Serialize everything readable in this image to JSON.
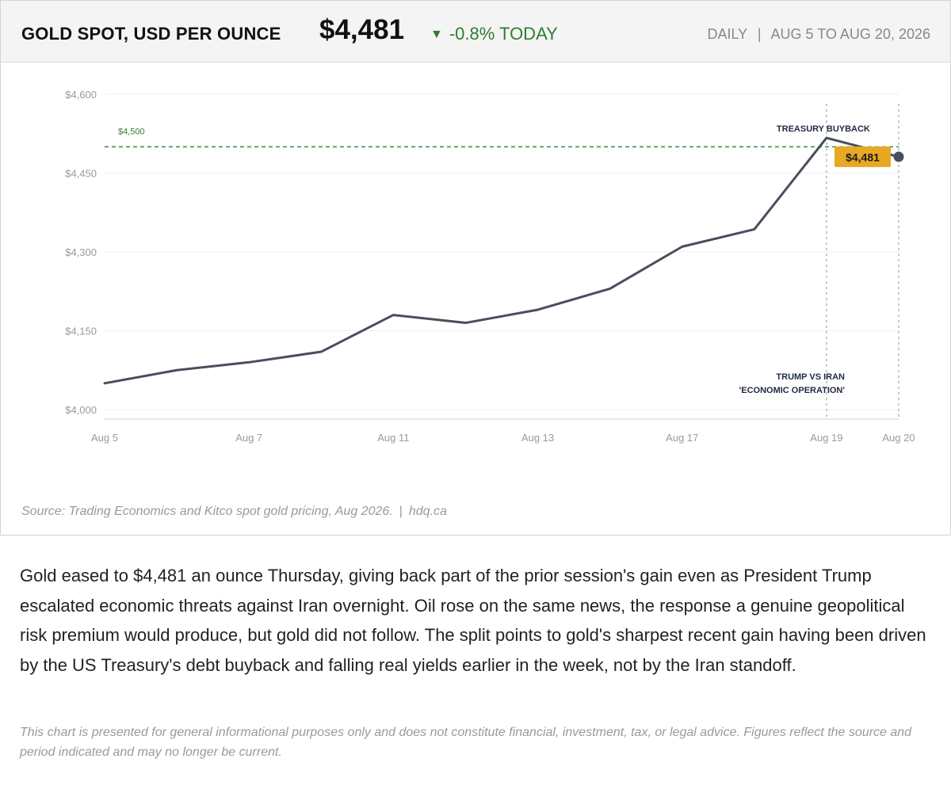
{
  "header": {
    "title": "GOLD SPOT, USD PER OUNCE",
    "price": "$4,481",
    "change_arrow": "▼",
    "change_text": "-0.8% TODAY",
    "change_color": "#2f7d32",
    "frequency": "DAILY",
    "separator": "|",
    "date_range": "AUG 5 TO AUG 20, 2026"
  },
  "chart_data": {
    "type": "line",
    "title": "GOLD SPOT, USD PER OUNCE",
    "x": [
      "Aug 5",
      "Aug 6",
      "Aug 7",
      "Aug 10",
      "Aug 11",
      "Aug 12",
      "Aug 13",
      "Aug 14",
      "Aug 17",
      "Aug 18",
      "Aug 19",
      "Aug 20"
    ],
    "x_tick_labels": [
      "Aug 5",
      "Aug 7",
      "Aug 11",
      "Aug 13",
      "Aug 17",
      "Aug 19",
      "Aug 20"
    ],
    "series": [
      {
        "values": [
          4050,
          4075,
          4090,
          4110,
          4180,
          4165,
          4190,
          4230,
          4310,
          4343,
          4517,
          4481
        ],
        "color": "#474f5e"
      }
    ],
    "ylim": [
      4000,
      4600
    ],
    "y_ticks": [
      4000,
      4150,
      4300,
      4450,
      4600
    ],
    "y_tick_labels": [
      "$4,000",
      "$4,150",
      "$4,300",
      "$4,450",
      "$4,600"
    ],
    "grid": "horizontal",
    "reference_line": {
      "value": 4500,
      "label": "$4,500",
      "color": "#2f7d32",
      "style": "dashed"
    },
    "annotations": [
      {
        "x": "Aug 19",
        "label": "TREASURY BUYBACK",
        "position": "top"
      },
      {
        "x": "Aug 19",
        "label_lines": [
          "TRUMP VS IRAN",
          "'ECONOMIC OPERATION'"
        ],
        "position": "bottom"
      },
      {
        "x": "Aug 20",
        "label": "",
        "position": "none"
      }
    ],
    "last_value_label": "$4,481",
    "last_value_color": "#e8a823"
  },
  "source": {
    "text": "Source: Trading Economics and Kitco spot gold pricing, Aug 2026.",
    "separator": "|",
    "site": "hdq.ca"
  },
  "article": {
    "paragraph": "Gold eased to $4,481 an ounce Thursday, giving back part of the prior session's gain even as President Trump escalated economic threats against Iran overnight. Oil rose on the same news, the response a genuine geopolitical risk premium would produce, but gold did not follow. The split points to gold's sharpest recent gain having been driven by the US Treasury's debt buyback and falling real yields earlier in the week, not by the Iran standoff.",
    "disclaimer": "This chart is presented for general informational purposes only and does not constitute financial, investment, tax, or legal advice. Figures reflect the source and period indicated and may no longer be current."
  }
}
